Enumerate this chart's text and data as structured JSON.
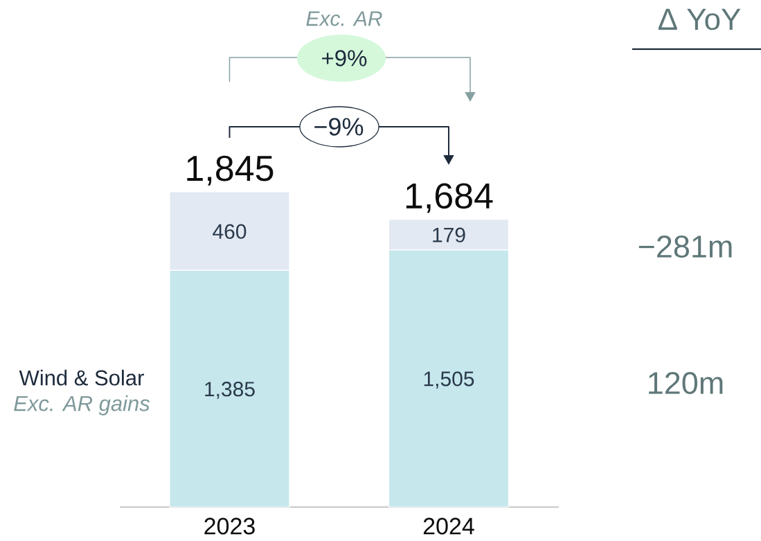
{
  "chart_data": {
    "type": "bar",
    "stacked": true,
    "categories": [
      "2023",
      "2024"
    ],
    "series": [
      {
        "name": "Wind & Solar",
        "color": "#c6e7ec",
        "values": [
          1385,
          1505
        ],
        "value_labels": [
          "1,385",
          "1,505"
        ]
      },
      {
        "color": "#e3e9f2",
        "values": [
          460,
          179
        ],
        "value_labels": [
          "460",
          "179"
        ]
      }
    ],
    "totals": [
      "1,845",
      "1,684"
    ],
    "annotations": [
      "Exc. AR",
      "+9%",
      "−9%",
      "Δ YoY",
      "−281m",
      "120m",
      "Exc. AR gains"
    ]
  }
}
